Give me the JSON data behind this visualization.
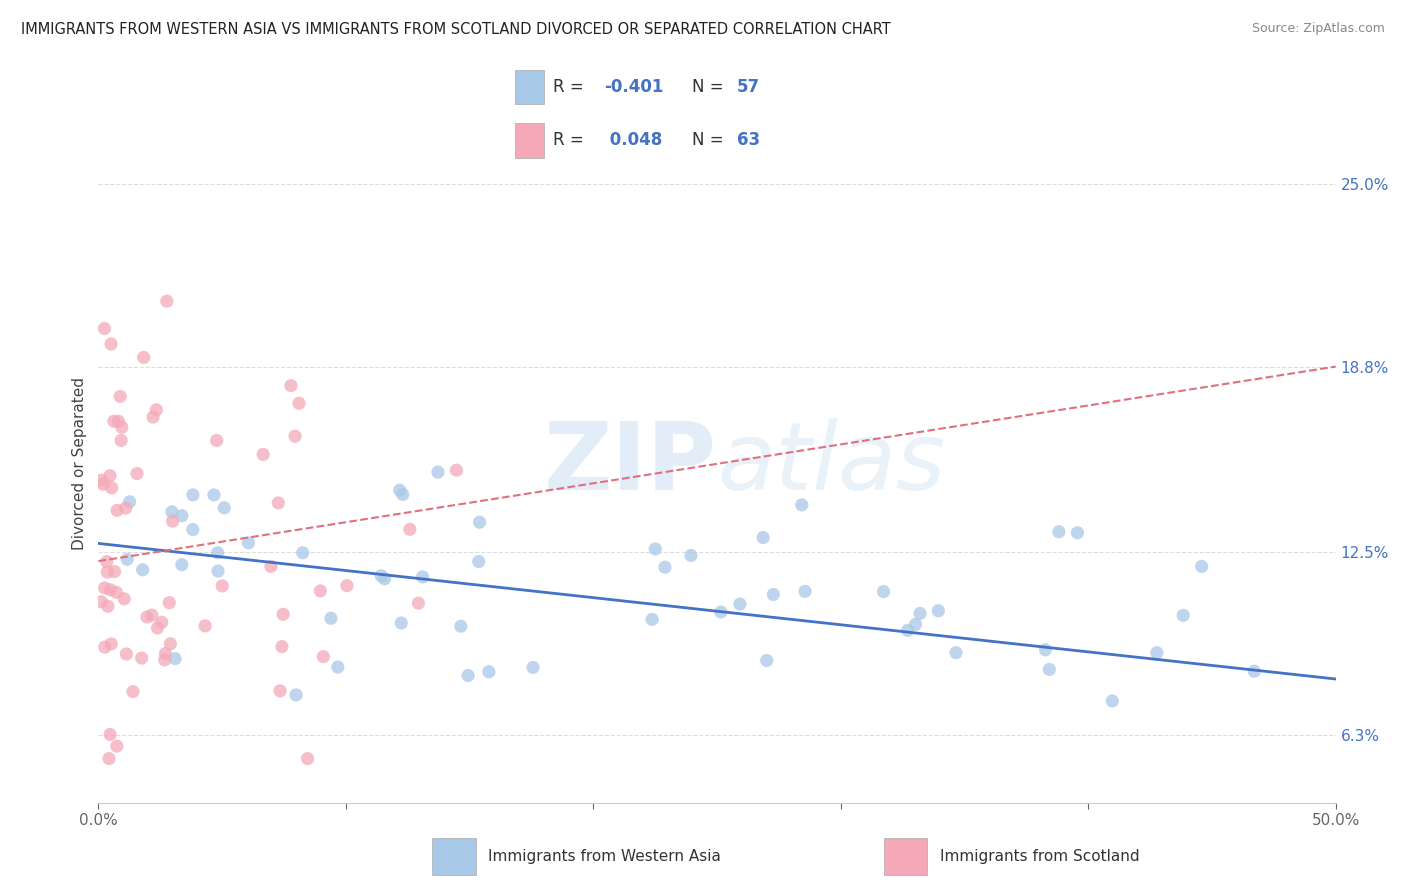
{
  "title": "IMMIGRANTS FROM WESTERN ASIA VS IMMIGRANTS FROM SCOTLAND DIVORCED OR SEPARATED CORRELATION CHART",
  "source": "Source: ZipAtlas.com",
  "xlabel_blue": "Immigrants from Western Asia",
  "xlabel_pink": "Immigrants from Scotland",
  "ylabel": "Divorced or Separated",
  "watermark_zip": "ZIP",
  "watermark_atlas": "atlas",
  "legend_blue_R": "-0.401",
  "legend_blue_N": "57",
  "legend_pink_R": "0.048",
  "legend_pink_N": "63",
  "xlim": [
    0.0,
    0.5
  ],
  "ylim": [
    0.04,
    0.27
  ],
  "ytick_right_labels": [
    "6.3%",
    "12.5%",
    "18.8%",
    "25.0%"
  ],
  "ytick_right_values": [
    0.063,
    0.125,
    0.188,
    0.25
  ],
  "color_blue": "#a8c8e8",
  "color_pink": "#f4a8b8",
  "color_blue_line": "#4472c4",
  "color_pink_line": "#e07080",
  "background_color": "#ffffff",
  "blue_line_x0": 0.0,
  "blue_line_y0": 0.128,
  "blue_line_x1": 0.5,
  "blue_line_y1": 0.082,
  "pink_line_x0": 0.0,
  "pink_line_y0": 0.122,
  "pink_line_x1": 0.5,
  "pink_line_y1": 0.188
}
